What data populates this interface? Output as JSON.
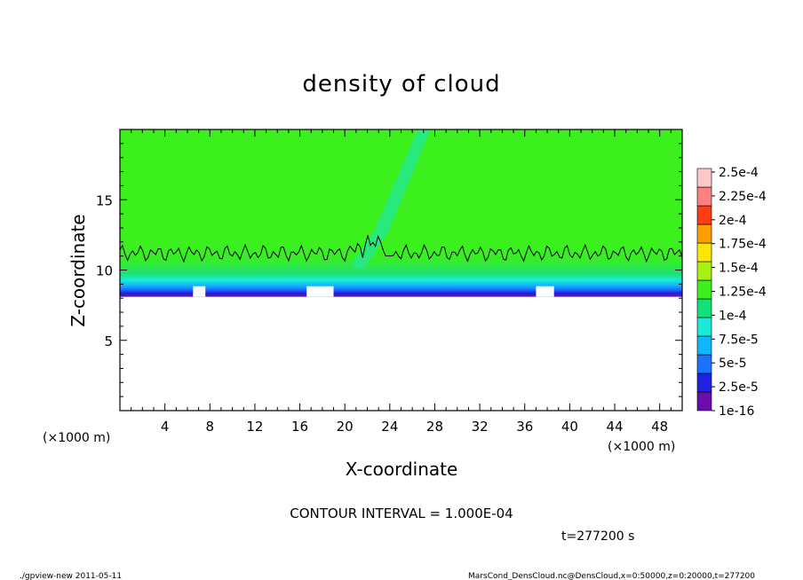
{
  "chart_data": {
    "type": "heatmap",
    "title": "density of cloud",
    "xlabel": "X-coordinate",
    "ylabel": "Z-coordinate",
    "x_unit": "(×1000 m)",
    "x_unit_right": "(×1000 m)",
    "xlim": [
      0,
      50
    ],
    "ylim": [
      0,
      20
    ],
    "x_ticks": [
      4,
      8,
      12,
      16,
      20,
      24,
      28,
      32,
      36,
      40,
      44,
      48
    ],
    "x_tick_labels": [
      "4",
      "8",
      "12",
      "16",
      "20",
      "24",
      "28",
      "32",
      "36",
      "40",
      "44",
      "48"
    ],
    "y_ticks": [
      5,
      10,
      15
    ],
    "y_tick_labels": [
      "5",
      "10",
      "15"
    ],
    "colorbar": {
      "labels": [
        "2.5e-4",
        "2.25e-4",
        "2e-4",
        "1.75e-4",
        "1.5e-4",
        "1.25e-4",
        "1e-4",
        "7.5e-5",
        "5e-5",
        "2.5e-5",
        "1e-16"
      ],
      "colors": [
        "#6a0dad",
        "#2020e0",
        "#1a73ff",
        "#12b6ff",
        "#18ecd8",
        "#14e07a",
        "#3cf01e",
        "#a8f014",
        "#ffe600",
        "#ff9e00",
        "#ff3c14",
        "#ff8080",
        "#ffc8c8"
      ]
    },
    "cloud_base_z": 8.1,
    "cloud_top_z": 20,
    "contour_level": 0.0001,
    "contour_z_mean": 11.2
  },
  "annotations": {
    "contour_interval": "CONTOUR INTERVAL = 1.000E-04",
    "time": "t=277200 s",
    "footer_left": "./gpview-new  2011-05-11",
    "footer_right": "MarsCond_DensCloud.nc@DensCloud,x=0:50000,z=0:20000,t=277200"
  }
}
